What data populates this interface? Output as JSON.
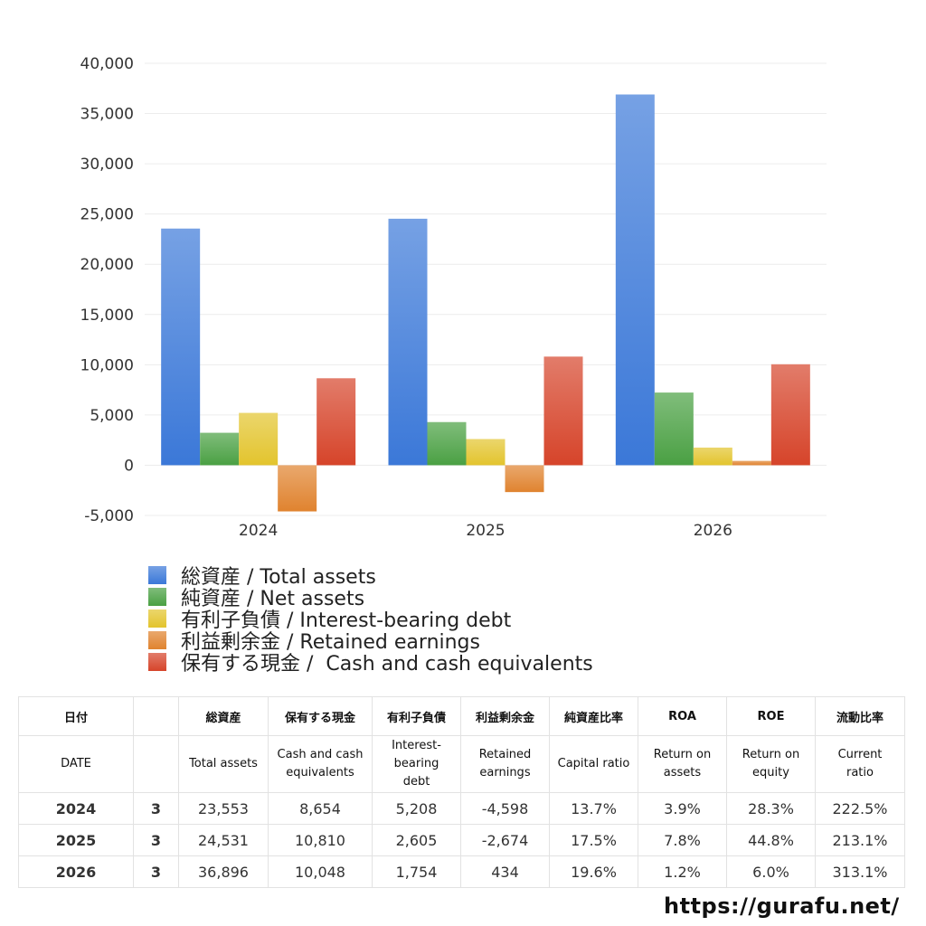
{
  "chart_data": {
    "type": "bar",
    "categories": [
      "2024",
      "2025",
      "2026"
    ],
    "series": [
      {
        "name": "総資産 / Total assets",
        "values": [
          23553,
          24531,
          36896
        ],
        "color": "#3b78d8"
      },
      {
        "name": "純資産 / Net assets",
        "values": [
          3229,
          4293,
          7232
        ],
        "color": "#4aa043"
      },
      {
        "name": "有利子負債 / Interest-bearing debt",
        "values": [
          5208,
          2605,
          1754
        ],
        "color": "#e3c42d"
      },
      {
        "name": "利益剰余金 / Retained earnings",
        "values": [
          -4598,
          -2674,
          434
        ],
        "color": "#e0832f"
      },
      {
        "name": "保有する現金 /  Cash and cash equivalents",
        "values": [
          8654,
          10810,
          10048
        ],
        "color": "#d6442a"
      }
    ],
    "ylim": [
      -5000,
      40000
    ],
    "yticks": [
      "-5,000",
      "0",
      "5,000",
      "10,000",
      "15,000",
      "20,000",
      "25,000",
      "30,000",
      "35,000",
      "40,000"
    ],
    "grid": true,
    "legend_position": "bottom"
  },
  "table": {
    "headers_jp": [
      "日付",
      "",
      "総資産",
      "保有する現金",
      "有利子負債",
      "利益剰余金",
      "純資産比率",
      "ROA",
      "ROE",
      "流動比率"
    ],
    "headers_en": [
      "DATE",
      "",
      "Total assets",
      "Cash and cash\nequivalents",
      "Interest-\nbearing\ndebt",
      "Retained\nearnings",
      "Capital ratio",
      "Return on\nassets",
      "Return on\nequity",
      "Current\nratio"
    ],
    "rows": [
      {
        "year": "2024",
        "month": "3",
        "cells": [
          "23,553",
          "8,654",
          "5,208",
          "-4,598",
          "13.7%",
          "3.9%",
          "28.3%",
          "222.5%"
        ]
      },
      {
        "year": "2025",
        "month": "3",
        "cells": [
          "24,531",
          "10,810",
          "2,605",
          "-2,674",
          "17.5%",
          "7.8%",
          "44.8%",
          "213.1%"
        ]
      },
      {
        "year": "2026",
        "month": "3",
        "cells": [
          "36,896",
          "10,048",
          "1,754",
          "434",
          "19.6%",
          "1.2%",
          "6.0%",
          "313.1%"
        ]
      }
    ]
  },
  "footer": {
    "url": "https://gurafu.net/"
  }
}
